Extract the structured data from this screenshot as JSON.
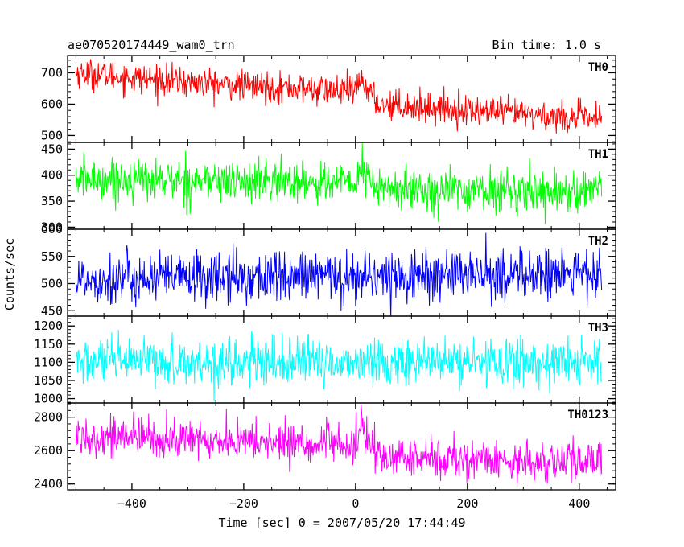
{
  "chart_data": {
    "type": "line",
    "title": "ae070520174449_wam0_trn",
    "bin_time_label": "Bin time: 1.0 s",
    "xlabel": "Time [sec] 0 = 2007/05/20 17:44:49",
    "ylabel": "Counts/sec",
    "xlim": [
      -515,
      465
    ],
    "x_ticks": [
      -400,
      -200,
      0,
      200,
      400
    ],
    "x_tick_labels": [
      "−400",
      "−200",
      "0",
      "200",
      "400"
    ],
    "x_range": [
      -500,
      440
    ],
    "bin_time": 1.0,
    "panels": [
      {
        "name": "TH0",
        "color": "#ff0000",
        "ylim": [
          478,
          755
        ],
        "y_ticks": [
          500,
          600,
          700
        ],
        "y_tick_labels": [
          "500",
          "600",
          "700"
        ],
        "level_points": [
          [
            -500,
            700
          ],
          [
            -300,
            668
          ],
          [
            0,
            640
          ],
          [
            10,
            680
          ],
          [
            40,
            600
          ],
          [
            200,
            580
          ],
          [
            440,
            550
          ]
        ],
        "noise_sigma": 24
      },
      {
        "name": "TH1",
        "color": "#00ff00",
        "ylim": [
          296,
          463
        ],
        "y_ticks": [
          300,
          350,
          400,
          450
        ],
        "y_tick_labels": [
          "300",
          "350",
          "400",
          "450"
        ],
        "level_points": [
          [
            -500,
            393
          ],
          [
            0,
            385
          ],
          [
            10,
            410
          ],
          [
            40,
            373
          ],
          [
            440,
            368
          ]
        ],
        "noise_sigma": 20
      },
      {
        "name": "TH2",
        "color": "#0000ff",
        "ylim": [
          440,
          600
        ],
        "y_ticks": [
          450,
          500,
          550,
          600
        ],
        "y_tick_labels": [
          "450",
          "500",
          "550",
          "600"
        ],
        "level_points": [
          [
            -500,
            508
          ],
          [
            440,
            518
          ]
        ],
        "noise_sigma": 24
      },
      {
        "name": "TH3",
        "color": "#00ffff",
        "ylim": [
          988,
          1227
        ],
        "y_ticks": [
          1000,
          1050,
          1100,
          1150,
          1200
        ],
        "y_tick_labels": [
          "1000",
          "1050",
          "1100",
          "1150",
          "1200"
        ],
        "level_points": [
          [
            -500,
            1100
          ],
          [
            440,
            1100
          ]
        ],
        "noise_sigma": 32
      },
      {
        "name": "TH0123",
        "color": "#ff00ff",
        "ylim": [
          2365,
          2885
        ],
        "y_ticks": [
          2400,
          2600,
          2800
        ],
        "y_tick_labels": [
          "2400",
          "2600",
          "2800"
        ],
        "level_points": [
          [
            -500,
            2690
          ],
          [
            0,
            2630
          ],
          [
            10,
            2740
          ],
          [
            40,
            2560
          ],
          [
            200,
            2550
          ],
          [
            440,
            2525
          ]
        ],
        "noise_sigma": 60
      }
    ]
  }
}
